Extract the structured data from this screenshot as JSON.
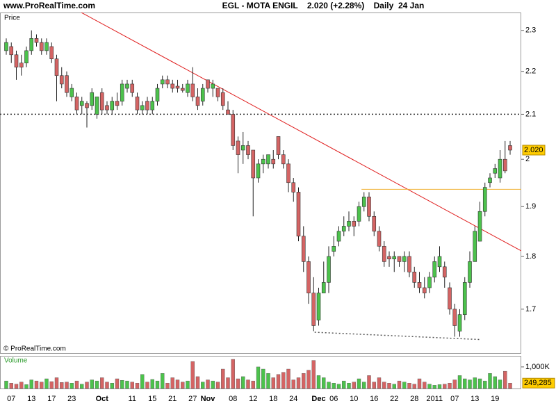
{
  "header": {
    "site": "www.ProRealTime.com",
    "title": "EGL - MOTA ENGIL    2.020 (+2.28%)    Daily  24 Jan"
  },
  "footer": "© ProRealTime.com",
  "chart_data": [
    {
      "type": "candlestick",
      "title": "Price",
      "log_scale": true,
      "up_color": "#4cc24c",
      "down_color": "#d46464",
      "ylim": [
        1.621,
        2.345
      ],
      "yticks": [
        1.7,
        1.8,
        1.9,
        2,
        2.1,
        2.2,
        2.3
      ],
      "open": [
        2.25,
        2.26,
        2.24,
        2.22,
        2.22,
        2.25,
        2.28,
        2.27,
        2.25,
        2.26,
        2.23,
        2.19,
        2.19,
        2.14,
        2.14,
        2.12,
        2.125,
        2.12,
        2.1,
        2.15,
        2.12,
        2.11,
        2.13,
        2.13,
        2.16,
        2.17,
        2.14,
        2.11,
        2.13,
        2.11,
        2.13,
        2.17,
        2.18,
        2.17,
        2.165,
        2.16,
        2.15,
        2.17,
        2.14,
        2.13,
        2.18,
        2.16,
        2.16,
        2.15,
        2.11,
        2.1,
        2.04,
        2.02,
        2.03,
        2.02,
        1.96,
        1.99,
        1.99,
        2.0,
        2.05,
        2.01,
        1.99,
        1.95,
        1.93,
        1.84,
        1.79,
        1.73,
        1.68,
        1.73,
        1.75,
        1.81,
        1.83,
        1.85,
        1.86,
        1.87,
        1.87,
        1.9,
        1.92,
        1.88,
        1.85,
        1.82,
        1.8,
        1.795,
        1.8,
        1.79,
        1.8,
        1.77,
        1.75,
        1.74,
        1.74,
        1.76,
        1.78,
        1.78,
        1.74,
        1.7,
        1.66,
        1.69,
        1.75,
        1.79,
        1.83,
        1.89,
        1.95,
        1.97,
        1.96,
        2.0,
        2.03
      ],
      "high": [
        2.28,
        2.27,
        2.25,
        2.24,
        2.26,
        2.3,
        2.29,
        2.28,
        2.28,
        2.27,
        2.24,
        2.21,
        2.2,
        2.17,
        2.15,
        2.14,
        2.13,
        2.16,
        2.14,
        2.16,
        2.13,
        2.14,
        2.15,
        2.18,
        2.18,
        2.18,
        2.15,
        2.13,
        2.14,
        2.14,
        2.17,
        2.19,
        2.19,
        2.18,
        2.18,
        2.17,
        2.18,
        2.21,
        2.16,
        2.17,
        2.18,
        2.18,
        2.16,
        2.16,
        2.13,
        2.11,
        2.05,
        2.06,
        2.04,
        2.02,
        2.0,
        2.01,
        2.01,
        2.02,
        2.05,
        2.02,
        2.0,
        1.96,
        1.94,
        1.86,
        1.8,
        1.76,
        1.74,
        1.79,
        1.82,
        1.84,
        1.86,
        1.88,
        1.89,
        1.88,
        1.91,
        1.93,
        1.93,
        1.89,
        1.86,
        1.83,
        1.81,
        1.81,
        1.8,
        1.81,
        1.81,
        1.78,
        1.77,
        1.76,
        1.77,
        1.8,
        1.82,
        1.79,
        1.75,
        1.71,
        1.7,
        1.76,
        1.81,
        1.86,
        1.91,
        1.95,
        1.97,
        1.99,
        2.02,
        2.04,
        2.04
      ],
      "low": [
        2.24,
        2.22,
        2.18,
        2.19,
        2.21,
        2.24,
        2.26,
        2.24,
        2.24,
        2.22,
        2.13,
        2.16,
        2.14,
        2.13,
        2.1,
        2.1,
        2.07,
        2.11,
        2.09,
        2.1,
        2.1,
        2.1,
        2.11,
        2.12,
        2.15,
        2.14,
        2.1,
        2.1,
        2.1,
        2.1,
        2.12,
        2.16,
        2.16,
        2.15,
        2.15,
        2.15,
        2.14,
        2.13,
        2.11,
        2.12,
        2.15,
        2.14,
        2.13,
        2.11,
        2.1,
        2.02,
        1.97,
        1.99,
        2.0,
        1.88,
        1.95,
        1.97,
        1.98,
        1.98,
        2.0,
        1.98,
        1.93,
        1.91,
        1.83,
        1.77,
        1.71,
        1.66,
        1.67,
        1.73,
        1.73,
        1.8,
        1.82,
        1.84,
        1.85,
        1.84,
        1.86,
        1.89,
        1.87,
        1.84,
        1.81,
        1.78,
        1.78,
        1.77,
        1.78,
        1.77,
        1.76,
        1.74,
        1.73,
        1.72,
        1.73,
        1.75,
        1.77,
        1.74,
        1.69,
        1.65,
        1.65,
        1.68,
        1.74,
        1.79,
        1.83,
        1.88,
        1.94,
        1.96,
        1.95,
        1.97,
        2.01
      ],
      "close": [
        2.27,
        2.24,
        2.21,
        2.21,
        2.25,
        2.28,
        2.27,
        2.25,
        2.27,
        2.23,
        2.19,
        2.17,
        2.15,
        2.16,
        2.11,
        2.13,
        2.115,
        2.15,
        2.14,
        2.11,
        2.11,
        2.13,
        2.12,
        2.17,
        2.17,
        2.15,
        2.11,
        2.12,
        2.11,
        2.13,
        2.16,
        2.18,
        2.17,
        2.16,
        2.16,
        2.155,
        2.17,
        2.14,
        2.12,
        2.16,
        2.16,
        2.17,
        2.14,
        2.12,
        2.1,
        2.03,
        2.01,
        2.03,
        2.01,
        1.96,
        1.99,
        2.0,
        2.01,
        1.99,
        2.01,
        1.99,
        1.95,
        1.93,
        1.84,
        1.79,
        1.73,
        1.67,
        1.73,
        1.75,
        1.8,
        1.82,
        1.85,
        1.86,
        1.87,
        1.86,
        1.9,
        1.92,
        1.88,
        1.85,
        1.82,
        1.79,
        1.795,
        1.8,
        1.79,
        1.8,
        1.77,
        1.75,
        1.74,
        1.73,
        1.76,
        1.79,
        1.8,
        1.76,
        1.7,
        1.67,
        1.69,
        1.75,
        1.79,
        1.85,
        1.89,
        1.94,
        1.96,
        1.98,
        2.0,
        1.975,
        2.02
      ],
      "value_labels": [
        null,
        null,
        null,
        null,
        null,
        null,
        null,
        null,
        null,
        null,
        null,
        null,
        null,
        null,
        null,
        null,
        null,
        null,
        null,
        null,
        null,
        null,
        null,
        null,
        null,
        null,
        null,
        null,
        null,
        null,
        null,
        null,
        null,
        null,
        null,
        null,
        null,
        null,
        null,
        null,
        null,
        null,
        null,
        null,
        null,
        null,
        null,
        null,
        null,
        null,
        null,
        null,
        null,
        null,
        null,
        null,
        null,
        null,
        null,
        null,
        null,
        null,
        null,
        null,
        null,
        null,
        null,
        null,
        null,
        null,
        null,
        null,
        null,
        null,
        null,
        null,
        null,
        null,
        null,
        null,
        null,
        null,
        null,
        null,
        null,
        null,
        null,
        null,
        null,
        null,
        null,
        null,
        null,
        null,
        null,
        null,
        null,
        null,
        null,
        null,
        "2.020"
      ],
      "hlines": [
        {
          "value": 2.1,
          "color": "#333333",
          "dash": true
        }
      ],
      "trendlines": [
        {
          "color": "#e02020",
          "dash": false,
          "points": [
            [
              14.9,
              2.345
            ],
            [
              102.2,
              1.811
            ]
          ]
        },
        {
          "color": "#f0b030",
          "dash": false,
          "points": [
            [
              70.5,
              1.936
            ],
            [
              102.2,
              1.936
            ]
          ]
        },
        {
          "color": "#555555",
          "dash": true,
          "points": [
            [
              61.2,
              1.658
            ],
            [
              93.9,
              1.645
            ]
          ]
        }
      ]
    },
    {
      "type": "bar",
      "title": "Volume",
      "up_color": "#4cc24c",
      "down_color": "#d46464",
      "ylim": [
        0,
        1480000
      ],
      "yticks": [
        {
          "value": 1000000,
          "label": "1,000K"
        }
      ],
      "categories": [
        null,
        "07",
        null,
        null,
        null,
        "13",
        null,
        null,
        null,
        "17",
        null,
        null,
        null,
        "23",
        null,
        null,
        null,
        null,
        null,
        "Oct",
        null,
        null,
        null,
        null,
        null,
        "11",
        null,
        null,
        null,
        "15",
        null,
        null,
        null,
        "21",
        null,
        null,
        null,
        "27",
        null,
        null,
        "Nov",
        null,
        null,
        null,
        null,
        "08",
        null,
        null,
        null,
        "12",
        null,
        null,
        null,
        "18",
        null,
        null,
        null,
        "24",
        null,
        null,
        null,
        null,
        "Dec",
        null,
        null,
        "06",
        null,
        null,
        null,
        "10",
        null,
        null,
        null,
        "16",
        null,
        null,
        null,
        "22",
        null,
        null,
        null,
        "28",
        null,
        null,
        null,
        "2011",
        null,
        null,
        null,
        "07",
        null,
        null,
        null,
        "13",
        null,
        null,
        null,
        "19",
        null,
        null,
        null
      ],
      "values": [
        350000,
        250000,
        200000,
        300000,
        180000,
        400000,
        350000,
        300000,
        450000,
        320000,
        500000,
        280000,
        300000,
        250000,
        350000,
        200000,
        300000,
        400000,
        350000,
        500000,
        300000,
        250000,
        450000,
        380000,
        350000,
        300000,
        250000,
        650000,
        300000,
        420000,
        350000,
        700000,
        250000,
        500000,
        400000,
        300000,
        350000,
        1250000,
        550000,
        300000,
        400000,
        350000,
        300000,
        900000,
        500000,
        1350000,
        450000,
        550000,
        400000,
        350000,
        1000000,
        900000,
        700000,
        500000,
        650000,
        750000,
        900000,
        400000,
        500000,
        700000,
        850000,
        1300000,
        600000,
        500000,
        300000,
        250000,
        200000,
        350000,
        250000,
        300000,
        450000,
        300000,
        600000,
        300000,
        500000,
        300000,
        250000,
        200000,
        350000,
        300000,
        250000,
        200000,
        450000,
        300000,
        200000,
        150000,
        180000,
        200000,
        250000,
        400000,
        600000,
        450000,
        400000,
        500000,
        450000,
        350000,
        700000,
        550000,
        400000,
        800000,
        249285
      ],
      "value_labels": [
        null,
        null,
        null,
        null,
        null,
        null,
        null,
        null,
        null,
        null,
        null,
        null,
        null,
        null,
        null,
        null,
        null,
        null,
        null,
        null,
        null,
        null,
        null,
        null,
        null,
        null,
        null,
        null,
        null,
        null,
        null,
        null,
        null,
        null,
        null,
        null,
        null,
        null,
        null,
        null,
        null,
        null,
        null,
        null,
        null,
        null,
        null,
        null,
        null,
        null,
        null,
        null,
        null,
        null,
        null,
        null,
        null,
        null,
        null,
        null,
        null,
        null,
        null,
        null,
        null,
        null,
        null,
        null,
        null,
        null,
        null,
        null,
        null,
        null,
        null,
        null,
        null,
        null,
        null,
        null,
        null,
        null,
        null,
        null,
        null,
        null,
        null,
        null,
        null,
        null,
        null,
        null,
        null,
        null,
        null,
        null,
        null,
        null,
        null,
        null,
        "249,285"
      ]
    }
  ]
}
